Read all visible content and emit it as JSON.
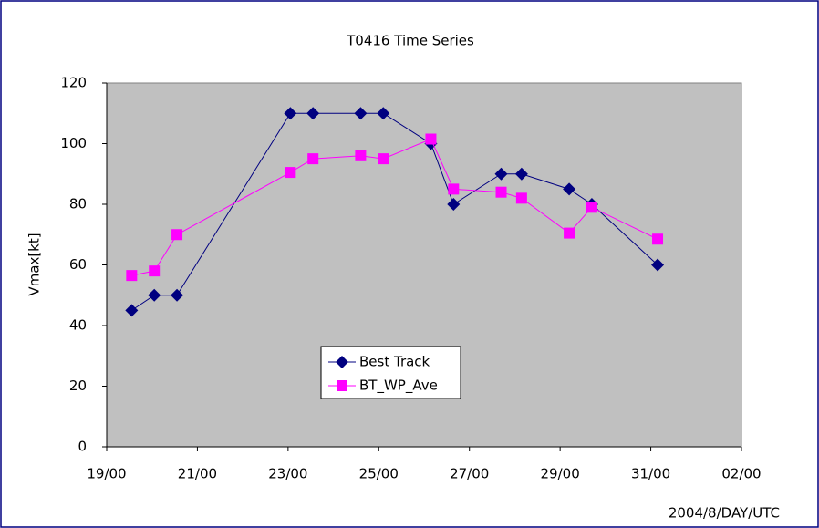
{
  "chart_data": {
    "type": "line",
    "title": "T0416 Time Series",
    "y_label": "Vmax[kt]",
    "x_label": "2004/8/DAY/UTC",
    "series": [
      {
        "name": "Best Track",
        "color": "#000080",
        "marker": "diamond",
        "x": [
          0.55,
          1.05,
          1.55,
          4.05,
          4.55,
          5.6,
          6.1,
          7.15,
          7.65,
          8.7,
          9.15,
          10.2,
          10.7,
          12.15
        ],
        "values": [
          45,
          50,
          50,
          110,
          110,
          110,
          110,
          100,
          80,
          90,
          90,
          85,
          80,
          60
        ]
      },
      {
        "name": "BT_WP_Ave",
        "color": "#ff00ff",
        "marker": "square",
        "x": [
          0.55,
          1.05,
          1.55,
          4.05,
          4.55,
          5.6,
          6.1,
          7.15,
          7.65,
          8.7,
          9.15,
          10.2,
          10.7,
          12.15
        ],
        "values": [
          56.5,
          58,
          70,
          90.5,
          95,
          96,
          95,
          101.5,
          85,
          84,
          82,
          70.5,
          79,
          68.5
        ]
      }
    ],
    "xlim": [
      0,
      14
    ],
    "xticks": [
      {
        "value": 0,
        "label": "19/00"
      },
      {
        "value": 2,
        "label": "21/00"
      },
      {
        "value": 4,
        "label": "23/00"
      },
      {
        "value": 6,
        "label": "25/00"
      },
      {
        "value": 8,
        "label": "27/00"
      },
      {
        "value": 10,
        "label": "29/00"
      },
      {
        "value": 12,
        "label": "31/00"
      },
      {
        "value": 14,
        "label": "02/00"
      }
    ],
    "ylim": [
      0,
      120
    ],
    "yticks": [
      0,
      20,
      40,
      60,
      80,
      100,
      120
    ],
    "grid": false,
    "plot_background": "#c0c0c0"
  }
}
